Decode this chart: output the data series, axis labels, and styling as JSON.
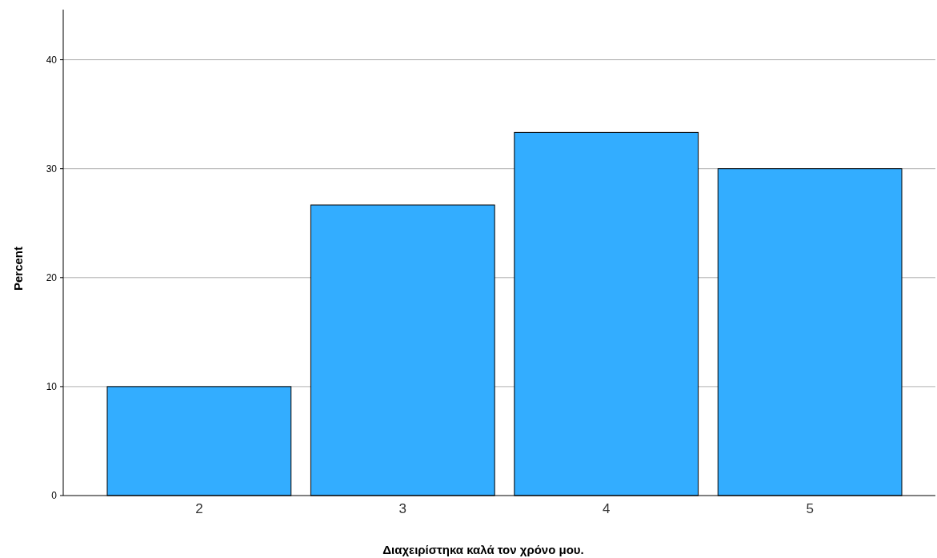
{
  "chart_data": {
    "type": "bar",
    "xlabel": "Διαχειρίστηκα καλά τον χρόνο μου.",
    "ylabel": "Percent",
    "categories": [
      "2",
      "3",
      "4",
      "5"
    ],
    "values": [
      10,
      26.67,
      33.33,
      30
    ],
    "color": "#33adff",
    "ylim": [
      0,
      44.6
    ],
    "yticks": [
      0,
      10,
      20,
      30,
      40
    ],
    "grid": "y"
  }
}
